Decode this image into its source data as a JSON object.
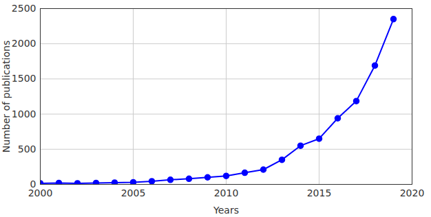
{
  "chart_data": {
    "type": "line",
    "x_label": "Years",
    "y_label": "Number of publications",
    "x": [
      2000,
      2001,
      2002,
      2003,
      2004,
      2005,
      2006,
      2007,
      2008,
      2009,
      2010,
      2011,
      2012,
      2013,
      2014,
      2015,
      2016,
      2017,
      2018,
      2019
    ],
    "values": [
      15,
      20,
      15,
      20,
      25,
      30,
      45,
      65,
      80,
      100,
      120,
      165,
      210,
      350,
      550,
      650,
      940,
      1185,
      1690,
      2350
    ],
    "color": "#0000ff",
    "marker": "circle",
    "line_style": "solid",
    "xlim": [
      2000,
      2020
    ],
    "xticks": [
      2000,
      2005,
      2010,
      2015,
      2020
    ],
    "ylim": [
      0,
      2500
    ],
    "yticks": [
      0,
      500,
      1000,
      1500,
      2000,
      2500
    ],
    "grid": true
  }
}
